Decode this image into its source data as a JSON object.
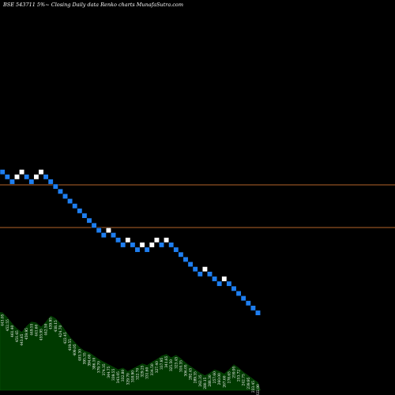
{
  "header": {
    "title": "BSE 543711 5%~  Closing Daily data  Renko  charts MunafaSutra.com"
  },
  "colors": {
    "background": "#000000",
    "up_brick": "#ffffff",
    "down_brick": "#1e7ef0",
    "reference_line": "#b5652a",
    "volume_fill": "#003a00",
    "label_text": "#ffffff"
  },
  "chart_data": {
    "type": "renko",
    "title": "BSE 543711 5%~  Closing Daily data  Renko  charts MunafaSutra.com",
    "brick_percent": 5,
    "horizontal_lines": [
      "upper",
      "lower"
    ],
    "bricks": [
      "down",
      "down",
      "down",
      "up",
      "up",
      "down",
      "down",
      "up",
      "up",
      "down",
      "down",
      "down",
      "down",
      "down",
      "down",
      "down",
      "down",
      "down",
      "down",
      "down",
      "down",
      "down",
      "up",
      "down",
      "down",
      "down",
      "up",
      "down",
      "down",
      "up",
      "down",
      "up",
      "up",
      "down",
      "up",
      "down",
      "down",
      "down",
      "down",
      "down",
      "down",
      "down",
      "up",
      "down",
      "down",
      "down",
      "up",
      "down",
      "down",
      "down",
      "down",
      "down",
      "down",
      "down"
    ],
    "volume_labels": [
      "443.05",
      "452.55",
      "461.40",
      "451.65",
      "443.65",
      "459.95",
      "449.55",
      "441.60",
      "455.95",
      "442.50",
      "439.95",
      "438.15",
      "424.70",
      "422.45",
      "419.55",
      "409.05",
      "403.30",
      "395.35",
      "394.60",
      "386.10",
      "379.70",
      "374.35",
      "344.75",
      "339.55",
      "343.05",
      "332.80",
      "329.70",
      "318.90",
      "322.70",
      "329.25",
      "331.60",
      "334.50",
      "327.40",
      "337.95",
      "341.65",
      "325.50",
      "323.45",
      "310.35",
      "306.05",
      "292.45",
      "289.35",
      "262.35",
      "280.15",
      "288.30",
      "257.60",
      "260.00",
      "267.60",
      "278.65",
      "259.95",
      "253.72",
      "242.75",
      "239.95",
      "233.45",
      "222.90"
    ],
    "volume_levels": [
      0.91,
      0.85,
      0.78,
      0.72,
      0.68,
      0.75,
      0.8,
      0.79,
      0.74,
      0.8,
      0.87,
      0.84,
      0.78,
      0.7,
      0.62,
      0.56,
      0.5,
      0.46,
      0.44,
      0.4,
      0.36,
      0.33,
      0.3,
      0.27,
      0.24,
      0.26,
      0.22,
      0.25,
      0.28,
      0.31,
      0.29,
      0.33,
      0.36,
      0.4,
      0.42,
      0.38,
      0.41,
      0.37,
      0.32,
      0.28,
      0.24,
      0.2,
      0.17,
      0.2,
      0.24,
      0.22,
      0.19,
      0.24,
      0.3,
      0.26,
      0.21,
      0.17,
      0.13,
      0.09
    ]
  }
}
